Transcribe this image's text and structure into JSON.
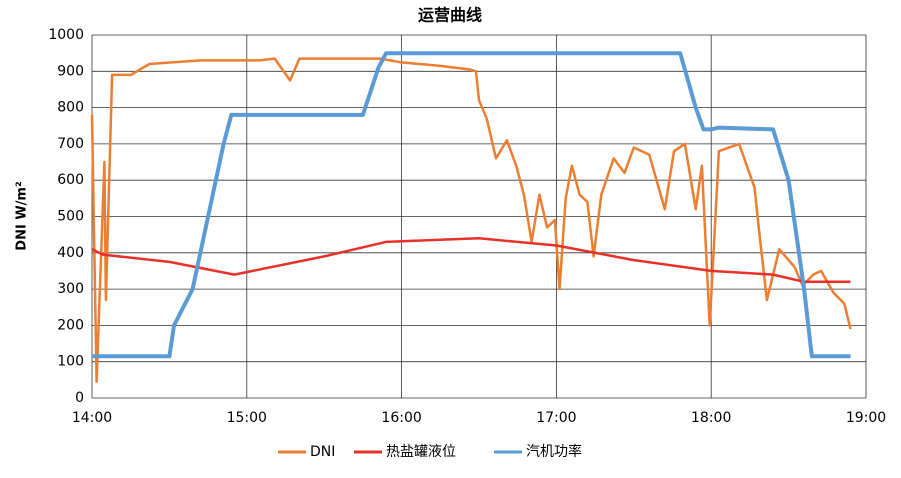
{
  "chart_data": {
    "type": "line",
    "title": "运营曲线",
    "y_label": "DNI W/m²",
    "xlim": [
      14,
      19
    ],
    "xticks": [
      {
        "value": 14,
        "label": "14:00"
      },
      {
        "value": 15,
        "label": "15:00"
      },
      {
        "value": 16,
        "label": "16:00"
      },
      {
        "value": 17,
        "label": "17:00"
      },
      {
        "value": 18,
        "label": "18:00"
      },
      {
        "value": 19,
        "label": "19:00"
      }
    ],
    "ylim": [
      0,
      1000
    ],
    "yticks": [
      0,
      100,
      200,
      300,
      400,
      500,
      600,
      700,
      800,
      900,
      1000
    ],
    "grid": true,
    "legend": "bottom",
    "series": [
      {
        "name": "DNI",
        "color": "#ed7d31",
        "width": 2.5,
        "x": [
          14.0,
          14.03,
          14.08,
          14.09,
          14.13,
          14.25,
          14.37,
          14.7,
          15.08,
          15.18,
          15.28,
          15.34,
          15.86,
          15.99,
          16.25,
          16.44,
          16.48,
          16.5,
          16.55,
          16.61,
          16.68,
          16.74,
          16.79,
          16.84,
          16.89,
          16.94,
          16.99,
          17.02,
          17.06,
          17.1,
          17.15,
          17.2,
          17.24,
          17.29,
          17.37,
          17.44,
          17.5,
          17.6,
          17.7,
          17.76,
          17.83,
          17.9,
          17.94,
          17.99,
          18.05,
          18.18,
          18.28,
          18.32,
          18.36,
          18.44,
          18.54,
          18.59,
          18.66,
          18.71,
          18.79,
          18.86,
          18.9
        ],
        "values": [
          780,
          45,
          650,
          270,
          890,
          890,
          920,
          930,
          930,
          935,
          875,
          935,
          935,
          925,
          915,
          905,
          900,
          820,
          770,
          660,
          710,
          640,
          560,
          430,
          560,
          470,
          490,
          300,
          550,
          640,
          560,
          540,
          390,
          560,
          660,
          620,
          690,
          670,
          520,
          680,
          700,
          520,
          640,
          200,
          680,
          700,
          580,
          420,
          270,
          410,
          360,
          310,
          340,
          350,
          290,
          260,
          190
        ]
      },
      {
        "name": "热盐罐液位",
        "color": "#e8302a",
        "width": 2.5,
        "x": [
          14.0,
          14.07,
          14.5,
          14.92,
          15.5,
          15.9,
          16.5,
          17.0,
          17.5,
          18.0,
          18.4,
          18.6,
          18.9
        ],
        "values": [
          410,
          395,
          375,
          340,
          390,
          430,
          440,
          420,
          380,
          350,
          340,
          320,
          320
        ]
      },
      {
        "name": "汽机功率",
        "color": "#5b9bd5",
        "width": 4,
        "x": [
          14.0,
          14.5,
          14.53,
          14.65,
          14.75,
          14.85,
          14.9,
          15.75,
          15.85,
          15.9,
          17.8,
          17.9,
          17.95,
          18.0,
          18.05,
          18.4,
          18.5,
          18.6,
          18.65,
          18.9
        ],
        "values": [
          115,
          115,
          200,
          300,
          500,
          700,
          780,
          780,
          910,
          950,
          950,
          800,
          740,
          740,
          745,
          740,
          600,
          300,
          115,
          115
        ]
      }
    ]
  }
}
